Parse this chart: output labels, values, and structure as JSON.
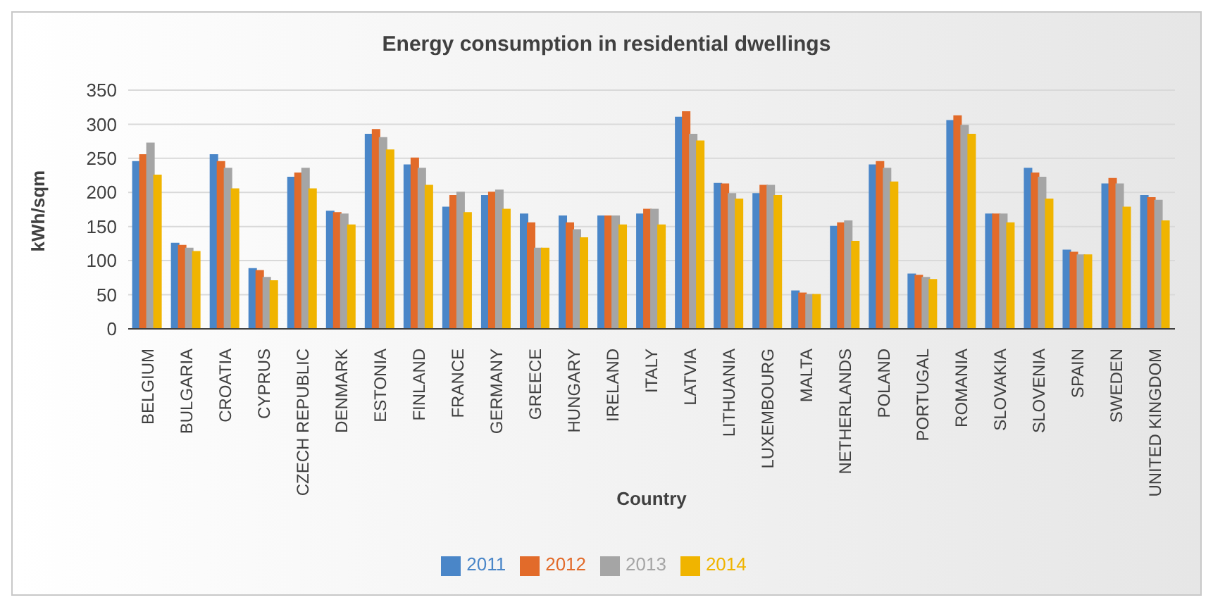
{
  "chart_data": {
    "type": "bar",
    "title": "Energy consumption in residential dwellings",
    "xlabel": "Country",
    "ylabel": "kWh/sqm",
    "categories": [
      "BELGIUM",
      "BULGARIA",
      "CROATIA",
      "CYPRUS",
      "CZECH REPUBLIC",
      "DENMARK",
      "ESTONIA",
      "FINLAND",
      "FRANCE",
      "GERMANY",
      "GREECE",
      "HUNGARY",
      "IRELAND",
      "ITALY",
      "LATVIA",
      "LITHUANIA",
      "LUXEMBOURG",
      "MALTA",
      "NETHERLANDS",
      "POLAND",
      "PORTUGAL",
      "ROMANIA",
      "SLOVAKIA",
      "SLOVENIA",
      "SPAIN",
      "SWEDEN",
      "UNITED KINGDOM"
    ],
    "series": [
      {
        "name": "2011",
        "color": "#4a86c8",
        "values": [
          245,
          125,
          255,
          88,
          222,
          172,
          285,
          240,
          178,
          195,
          168,
          165,
          165,
          168,
          310,
          213,
          198,
          55,
          150,
          240,
          80,
          305,
          168,
          235,
          115,
          212,
          195
        ]
      },
      {
        "name": "2012",
        "color": "#e26b2a",
        "values": [
          255,
          122,
          245,
          85,
          228,
          170,
          292,
          250,
          195,
          200,
          155,
          155,
          165,
          175,
          318,
          212,
          210,
          52,
          155,
          245,
          78,
          312,
          168,
          228,
          112,
          220,
          192
        ]
      },
      {
        "name": "2013",
        "color": "#a5a5a5",
        "values": [
          272,
          118,
          235,
          75,
          235,
          168,
          280,
          235,
          200,
          203,
          118,
          145,
          165,
          175,
          285,
          198,
          210,
          50,
          158,
          235,
          75,
          298,
          168,
          222,
          108,
          212,
          188
        ]
      },
      {
        "name": "2014",
        "color": "#f0b400",
        "values": [
          225,
          113,
          205,
          70,
          205,
          152,
          262,
          210,
          170,
          175,
          118,
          133,
          152,
          152,
          275,
          190,
          195,
          50,
          128,
          215,
          72,
          285,
          155,
          190,
          108,
          178,
          158
        ]
      }
    ],
    "ylim": [
      0,
      350
    ],
    "yticks": [
      0,
      50,
      100,
      150,
      200,
      250,
      300,
      350
    ],
    "grid": "y",
    "legend": "bottom"
  }
}
